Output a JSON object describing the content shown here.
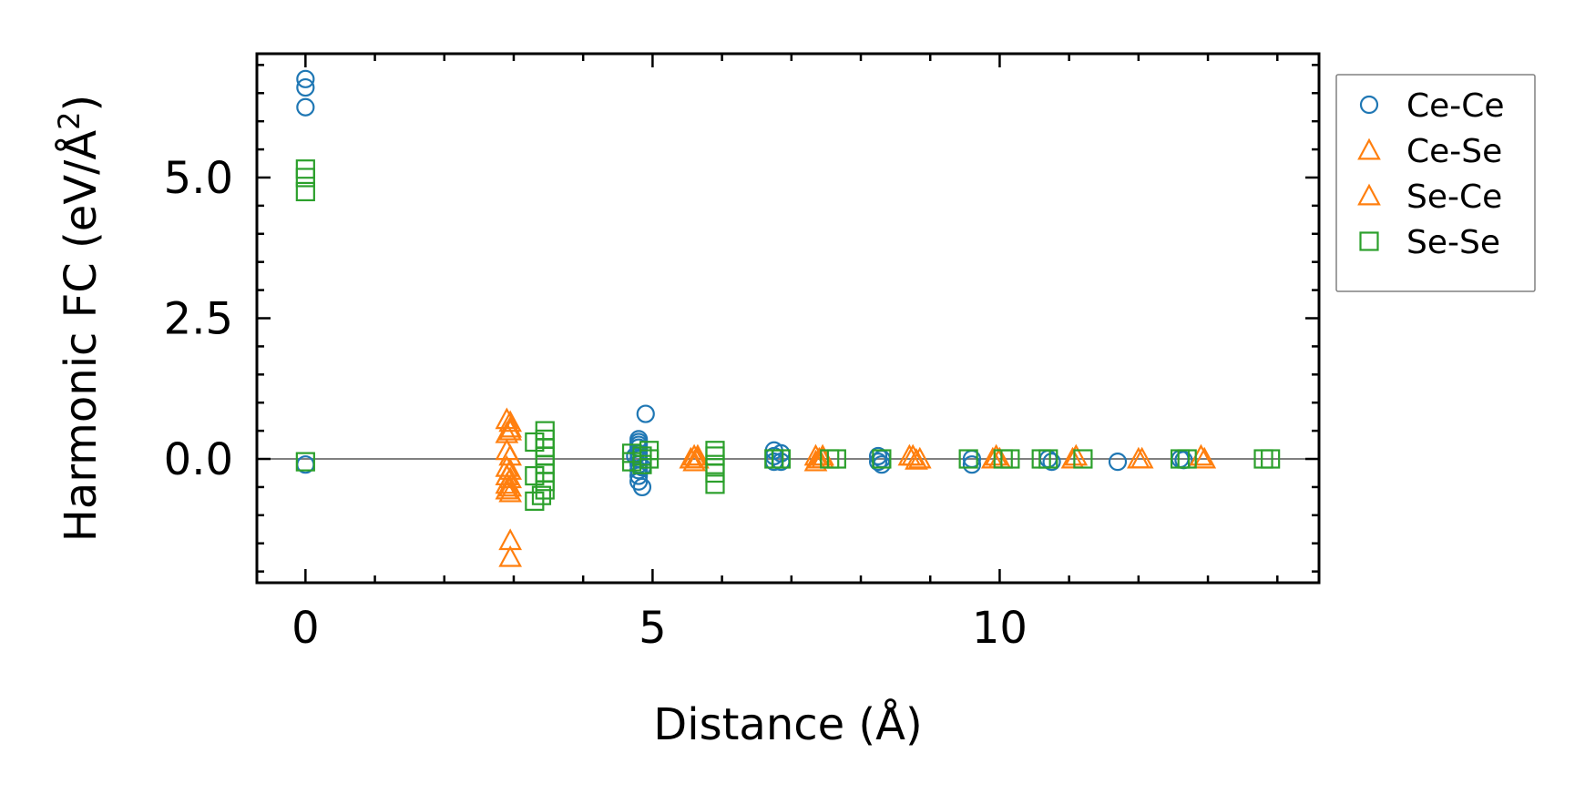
{
  "chart_data": {
    "type": "scatter",
    "xlabel": "Distance (Å)",
    "ylabel": {
      "main": "Harmonic FC (eV/Å",
      "superscript": "2",
      "close": ")"
    },
    "xlim": [
      -0.7,
      14.6
    ],
    "ylim": [
      -2.2,
      7.2
    ],
    "xticks": [
      0,
      5,
      10
    ],
    "xtick_labels": [
      "0",
      "5",
      "10"
    ],
    "xminor_step": 1,
    "yticks": [
      0.0,
      2.5,
      5.0
    ],
    "ytick_labels": [
      "0.0",
      "2.5",
      "5.0"
    ],
    "yminor_step": 0.5,
    "tick_direction": "in",
    "mirror_ticks": true,
    "zero_line": true,
    "grid": false,
    "legend_position": "outside-right-top",
    "series": [
      {
        "name": "Ce-Ce",
        "marker": "circle",
        "color": "#1f77b4",
        "points": [
          [
            0,
            6.75
          ],
          [
            0,
            6.6
          ],
          [
            0,
            6.25
          ],
          [
            0,
            -0.1
          ],
          [
            4.8,
            0.35
          ],
          [
            4.8,
            0.3
          ],
          [
            4.8,
            0.25
          ],
          [
            4.8,
            0.2
          ],
          [
            4.8,
            0.1
          ],
          [
            4.8,
            0.0
          ],
          [
            4.8,
            -0.1
          ],
          [
            4.8,
            -0.2
          ],
          [
            4.8,
            -0.3
          ],
          [
            4.8,
            -0.4
          ],
          [
            4.85,
            -0.5
          ],
          [
            4.9,
            0.8
          ],
          [
            4.75,
            0.05
          ],
          [
            4.85,
            -0.15
          ],
          [
            6.75,
            0.15
          ],
          [
            6.75,
            0.05
          ],
          [
            6.75,
            -0.05
          ],
          [
            6.85,
            0.1
          ],
          [
            6.85,
            -0.05
          ],
          [
            8.25,
            0.05
          ],
          [
            8.25,
            -0.05
          ],
          [
            8.3,
            0.0
          ],
          [
            8.3,
            -0.1
          ],
          [
            9.6,
            0.0
          ],
          [
            9.6,
            -0.1
          ],
          [
            10.7,
            0.0
          ],
          [
            10.75,
            -0.05
          ],
          [
            11.7,
            -0.05
          ],
          [
            12.6,
            0.0
          ],
          [
            12.65,
            -0.02
          ]
        ]
      },
      {
        "name": "Ce-Se",
        "marker": "triangle",
        "color": "#ff7f0e",
        "points": [
          [
            2.95,
            0.65
          ],
          [
            2.95,
            0.55
          ],
          [
            2.95,
            0.5
          ],
          [
            2.95,
            0.05
          ],
          [
            2.95,
            -0.2
          ],
          [
            2.95,
            -0.35
          ],
          [
            2.95,
            -0.5
          ],
          [
            2.95,
            -0.6
          ],
          [
            2.95,
            -1.45
          ],
          [
            2.95,
            -1.75
          ],
          [
            5.6,
            0.05
          ],
          [
            5.6,
            -0.05
          ],
          [
            5.65,
            0.0
          ],
          [
            7.35,
            0.05
          ],
          [
            7.35,
            -0.05
          ],
          [
            7.45,
            0.0
          ],
          [
            8.75,
            0.05
          ],
          [
            8.8,
            -0.02
          ],
          [
            9.9,
            0.0
          ],
          [
            10.0,
            0.0
          ],
          [
            11.05,
            0.0
          ],
          [
            12.05,
            0.0
          ],
          [
            12.95,
            0.0
          ]
        ]
      },
      {
        "name": "Se-Ce",
        "marker": "triangle",
        "color": "#ff7f0e",
        "points": [
          [
            2.9,
            0.7
          ],
          [
            2.9,
            0.45
          ],
          [
            2.9,
            0.15
          ],
          [
            2.9,
            -0.15
          ],
          [
            2.9,
            -0.3
          ],
          [
            2.9,
            -0.45
          ],
          [
            2.9,
            -0.55
          ],
          [
            5.55,
            0.0
          ],
          [
            5.65,
            0.05
          ],
          [
            7.4,
            0.0
          ],
          [
            7.45,
            0.05
          ],
          [
            8.7,
            0.05
          ],
          [
            8.85,
            0.0
          ],
          [
            9.95,
            0.05
          ],
          [
            11.1,
            0.05
          ],
          [
            12.0,
            0.0
          ],
          [
            12.9,
            0.05
          ]
        ]
      },
      {
        "name": "Se-Se",
        "marker": "square",
        "color": "#2ca02c",
        "points": [
          [
            0,
            5.15
          ],
          [
            0,
            5.0
          ],
          [
            0,
            4.75
          ],
          [
            0,
            -0.05
          ],
          [
            3.3,
            0.3
          ],
          [
            3.3,
            -0.3
          ],
          [
            3.3,
            -0.75
          ],
          [
            3.45,
            0.5
          ],
          [
            3.45,
            0.35
          ],
          [
            3.45,
            0.2
          ],
          [
            3.45,
            0.05
          ],
          [
            3.45,
            -0.1
          ],
          [
            3.45,
            -0.25
          ],
          [
            3.45,
            -0.4
          ],
          [
            3.45,
            -0.55
          ],
          [
            3.4,
            -0.65
          ],
          [
            4.7,
            0.1
          ],
          [
            4.7,
            -0.05
          ],
          [
            4.85,
            0.05
          ],
          [
            4.85,
            -0.1
          ],
          [
            4.95,
            0.15
          ],
          [
            4.95,
            0.0
          ],
          [
            5.9,
            0.15
          ],
          [
            5.9,
            0.05
          ],
          [
            5.9,
            -0.1
          ],
          [
            5.9,
            -0.25
          ],
          [
            5.9,
            -0.45
          ],
          [
            6.75,
            0.0
          ],
          [
            6.85,
            0.0
          ],
          [
            7.55,
            0.0
          ],
          [
            7.65,
            0.0
          ],
          [
            8.3,
            0.0
          ],
          [
            9.55,
            0.0
          ],
          [
            10.05,
            0.0
          ],
          [
            10.15,
            0.0
          ],
          [
            10.6,
            0.0
          ],
          [
            10.7,
            0.0
          ],
          [
            11.2,
            0.0
          ],
          [
            12.6,
            0.0
          ],
          [
            12.7,
            0.0
          ],
          [
            13.8,
            0.0
          ],
          [
            13.9,
            0.0
          ]
        ]
      }
    ]
  }
}
